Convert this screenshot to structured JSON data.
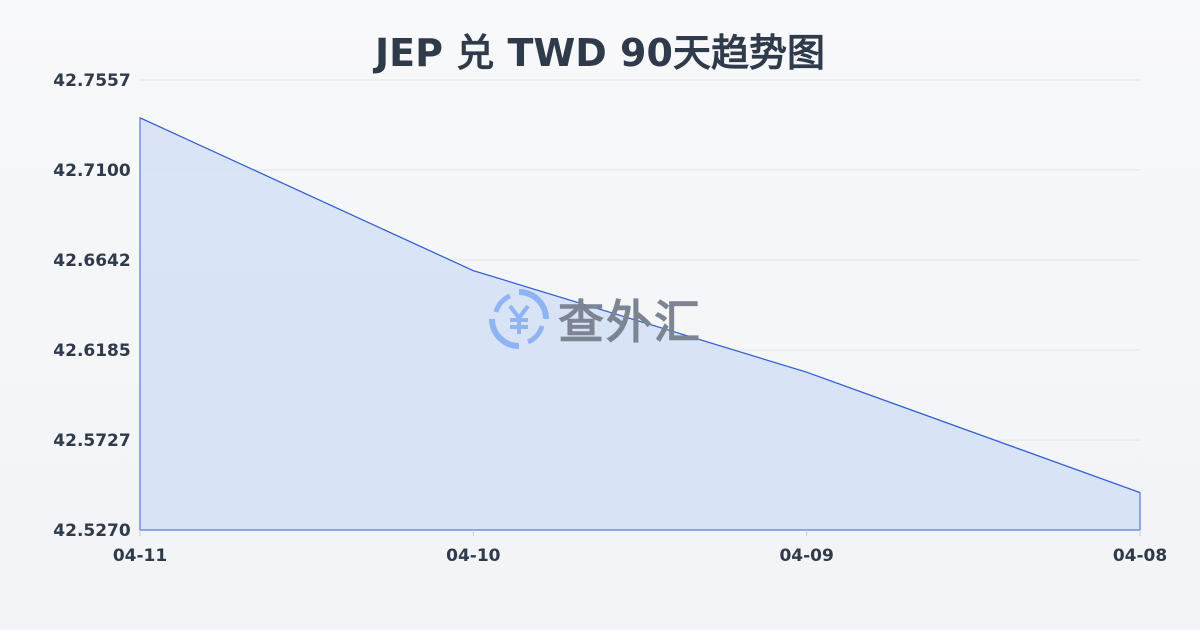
{
  "chart_data": {
    "type": "area",
    "title": "JEP 兑 TWD 90天趋势图",
    "categories": [
      "04-11",
      "04-10",
      "04-09",
      "04-08"
    ],
    "series": [
      {
        "values": [
          42.7365,
          42.6588,
          42.6072,
          42.546
        ]
      }
    ],
    "yticks": [
      "42.7557",
      "42.7100",
      "42.6642",
      "42.6185",
      "42.5727",
      "42.5270"
    ],
    "ylim": [
      42.527,
      42.7557
    ],
    "grid": true,
    "line_color": "#3563d6",
    "fill_color": "#d6e1f5"
  },
  "watermark": {
    "text": "查外汇",
    "icon": "yen-exchange-icon",
    "icon_color": "#8fb4f3"
  }
}
